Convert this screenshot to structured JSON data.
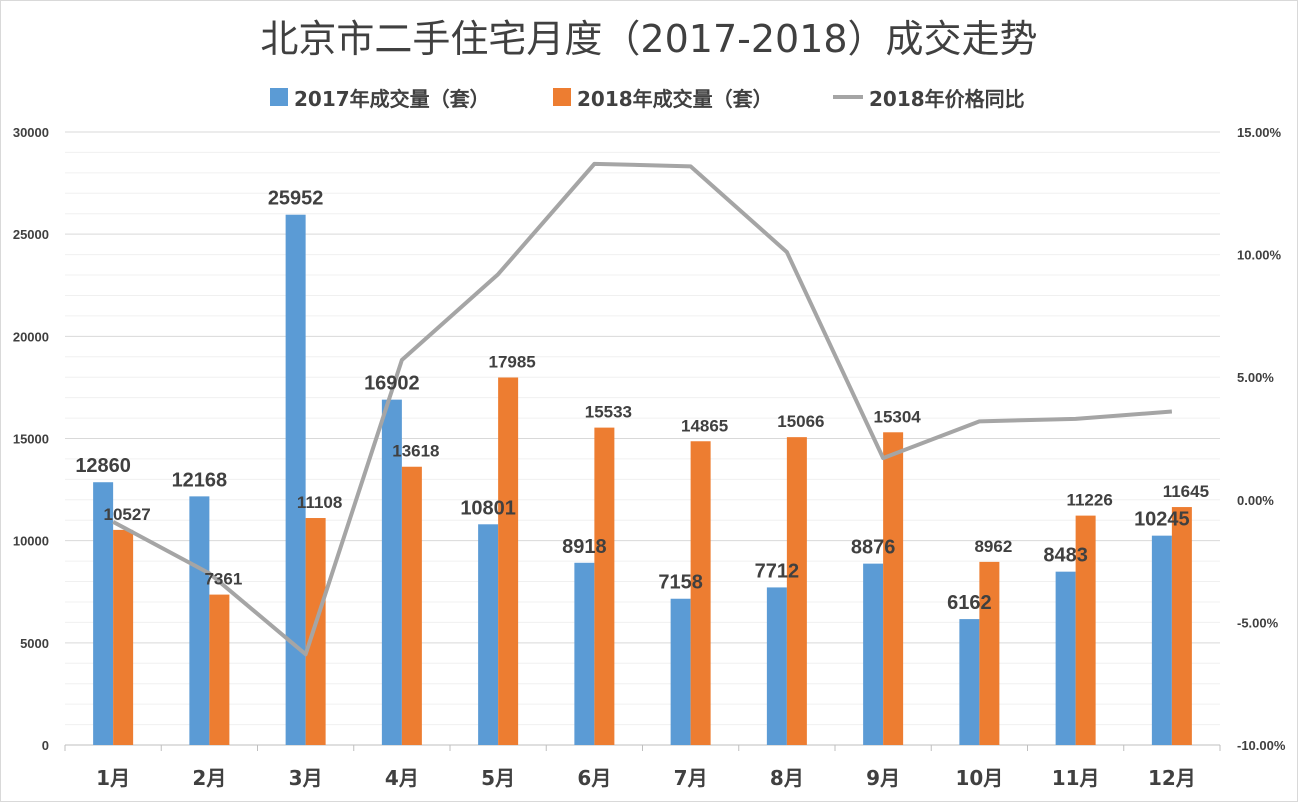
{
  "chart_data": {
    "type": "bar",
    "title": "北京市二手住宅月度（2017-2018）成交走势",
    "categories": [
      "1月",
      "2月",
      "3月",
      "4月",
      "5月",
      "6月",
      "7月",
      "8月",
      "9月",
      "10月",
      "11月",
      "12月"
    ],
    "series": [
      {
        "name": "2017年成交量（套）",
        "type": "bar",
        "axis": "left",
        "color": "#5b9bd5",
        "values": [
          12860,
          12168,
          25952,
          16902,
          10801,
          8918,
          7158,
          7712,
          8876,
          6162,
          8483,
          10245
        ]
      },
      {
        "name": "2018年成交量（套）",
        "type": "bar",
        "axis": "left",
        "color": "#ed7d31",
        "values": [
          10527,
          7361,
          11108,
          13618,
          17985,
          15533,
          14865,
          15066,
          15304,
          8962,
          11226,
          11645
        ]
      },
      {
        "name": "2018年价格同比",
        "type": "line",
        "axis": "right",
        "color": "#a5a5a5",
        "values": [
          -0.9,
          -3.0,
          -6.3,
          5.7,
          9.2,
          13.7,
          13.6,
          10.1,
          1.7,
          3.2,
          3.3,
          3.6
        ]
      }
    ],
    "ylim": [
      0,
      30000
    ],
    "yticks": [
      "0",
      "5000",
      "10000",
      "15000",
      "20000",
      "25000",
      "30000"
    ],
    "y2lim": [
      -10,
      15
    ],
    "y2ticks": [
      "-10.00%",
      "-5.00%",
      "0.00%",
      "5.00%",
      "10.00%",
      "15.00%"
    ],
    "legend": "top",
    "grid": true
  }
}
